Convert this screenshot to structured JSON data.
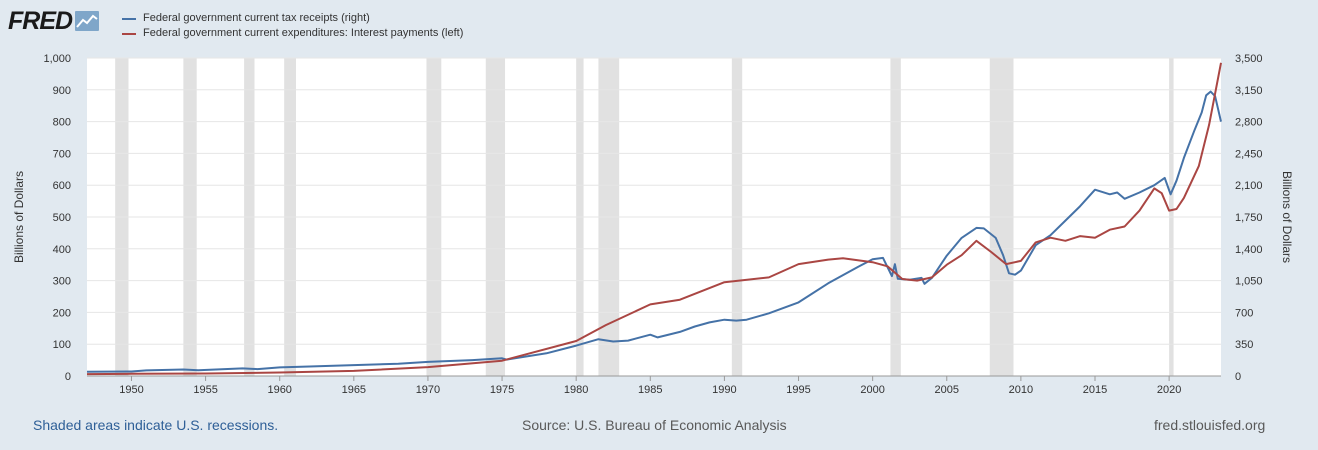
{
  "brand": {
    "logo_text": "FRED"
  },
  "legend": {
    "items": [
      {
        "label": "Federal government current tax receipts (right)",
        "color": "#4572a7"
      },
      {
        "label": "Federal government current expenditures: Interest payments (left)",
        "color": "#aa4643"
      }
    ]
  },
  "footer": {
    "recessions": "Shaded areas indicate U.S. recessions.",
    "source": "Source: U.S. Bureau of Economic Analysis",
    "site": "fred.stlouisfed.org"
  },
  "chart_data": {
    "type": "line",
    "title": "",
    "xlabel": "",
    "ylabel_left": "Billions of Dollars",
    "ylabel_right": "Billions of Dollars",
    "xlim": [
      1947,
      2023.5
    ],
    "ylim_left": [
      0,
      1000
    ],
    "ylim_right": [
      0,
      3500
    ],
    "x_ticks": [
      1950,
      1955,
      1960,
      1965,
      1970,
      1975,
      1980,
      1985,
      1990,
      1995,
      2000,
      2005,
      2010,
      2015,
      2020
    ],
    "y_ticks_left": [
      0,
      100,
      200,
      300,
      400,
      500,
      600,
      700,
      800,
      900,
      1000
    ],
    "y_ticks_left_labels": [
      "0",
      "100",
      "200",
      "300",
      "400",
      "500",
      "600",
      "700",
      "800",
      "900",
      "1,000"
    ],
    "y_ticks_right": [
      0,
      350,
      700,
      1050,
      1400,
      1750,
      2100,
      2450,
      2800,
      3150,
      3500
    ],
    "y_ticks_right_labels": [
      "0",
      "350",
      "700",
      "1,050",
      "1,400",
      "1,750",
      "2,100",
      "2,450",
      "2,800",
      "3,150",
      "3,500"
    ],
    "grid": true,
    "legend_position": "top-left",
    "recessions": [
      [
        1948.9,
        1949.8
      ],
      [
        1953.5,
        1954.4
      ],
      [
        1957.6,
        1958.3
      ],
      [
        1960.3,
        1961.1
      ],
      [
        1969.9,
        1970.9
      ],
      [
        1973.9,
        1975.2
      ],
      [
        1980.0,
        1980.5
      ],
      [
        1981.5,
        1982.9
      ],
      [
        1990.5,
        1991.2
      ],
      [
        2001.2,
        2001.9
      ],
      [
        2007.9,
        2009.5
      ],
      [
        2020.0,
        2020.3
      ]
    ],
    "series": [
      {
        "name": "Federal government current tax receipts (right)",
        "axis": "right",
        "color": "#4572a7",
        "x": [
          1947,
          1950,
          1951,
          1953.5,
          1954.5,
          1957.5,
          1958.5,
          1960,
          1962,
          1965,
          1968,
          1970,
          1973,
          1975,
          1975.3,
          1978,
          1980,
          1981.5,
          1982.5,
          1983.5,
          1985,
          1985.5,
          1987,
          1988,
          1989,
          1990,
          1990.8,
          1991.5,
          1993,
          1995,
          1997,
          1999,
          2000,
          2000.7,
          2001.3,
          2001.5,
          2001.7,
          2002.5,
          2003.3,
          2003.5,
          2004,
          2005,
          2006,
          2007,
          2007.5,
          2008.3,
          2008.8,
          2009.2,
          2009.6,
          2010,
          2011,
          2012,
          2013,
          2014,
          2015,
          2016,
          2016.5,
          2017,
          2018,
          2019,
          2019.7,
          2020.1,
          2020.5,
          2021,
          2021.7,
          2022.2,
          2022.5,
          2022.8,
          2023.1,
          2023.5
        ],
        "y": [
          47,
          50,
          62,
          72,
          64,
          84,
          76,
          95,
          105,
          120,
          135,
          155,
          175,
          195,
          180,
          250,
          335,
          405,
          380,
          390,
          455,
          425,
          485,
          545,
          590,
          620,
          610,
          620,
          690,
          810,
          1020,
          1200,
          1285,
          1300,
          1100,
          1230,
          1070,
          1060,
          1080,
          1015,
          1080,
          1325,
          1520,
          1630,
          1625,
          1520,
          1330,
          1130,
          1115,
          1160,
          1440,
          1550,
          1710,
          1870,
          2050,
          2000,
          2020,
          1950,
          2020,
          2100,
          2180,
          2000,
          2150,
          2400,
          2700,
          2900,
          3090,
          3130,
          3080,
          2800
        ]
      },
      {
        "name": "Federal government current expenditures: Interest payments (left)",
        "axis": "left",
        "color": "#aa4643",
        "x": [
          1947,
          1950,
          1955,
          1960,
          1965,
          1970,
          1975,
          1980,
          1982,
          1985,
          1987,
          1990,
          1993,
          1995,
          1997,
          1998,
          2000,
          2001,
          2002,
          2003,
          2004,
          2005,
          2006,
          2007,
          2008,
          2009,
          2010,
          2011,
          2012,
          2013,
          2014,
          2015,
          2016,
          2017,
          2018,
          2019,
          2019.5,
          2020,
          2020.5,
          2021,
          2022,
          2022.7,
          2023.5
        ],
        "y": [
          6,
          7,
          8,
          11,
          16,
          28,
          48,
          110,
          160,
          225,
          240,
          295,
          310,
          352,
          366,
          370,
          358,
          345,
          305,
          300,
          310,
          350,
          380,
          425,
          390,
          352,
          362,
          420,
          435,
          425,
          440,
          435,
          460,
          470,
          520,
          590,
          575,
          520,
          525,
          560,
          660,
          790,
          985
        ]
      }
    ]
  }
}
